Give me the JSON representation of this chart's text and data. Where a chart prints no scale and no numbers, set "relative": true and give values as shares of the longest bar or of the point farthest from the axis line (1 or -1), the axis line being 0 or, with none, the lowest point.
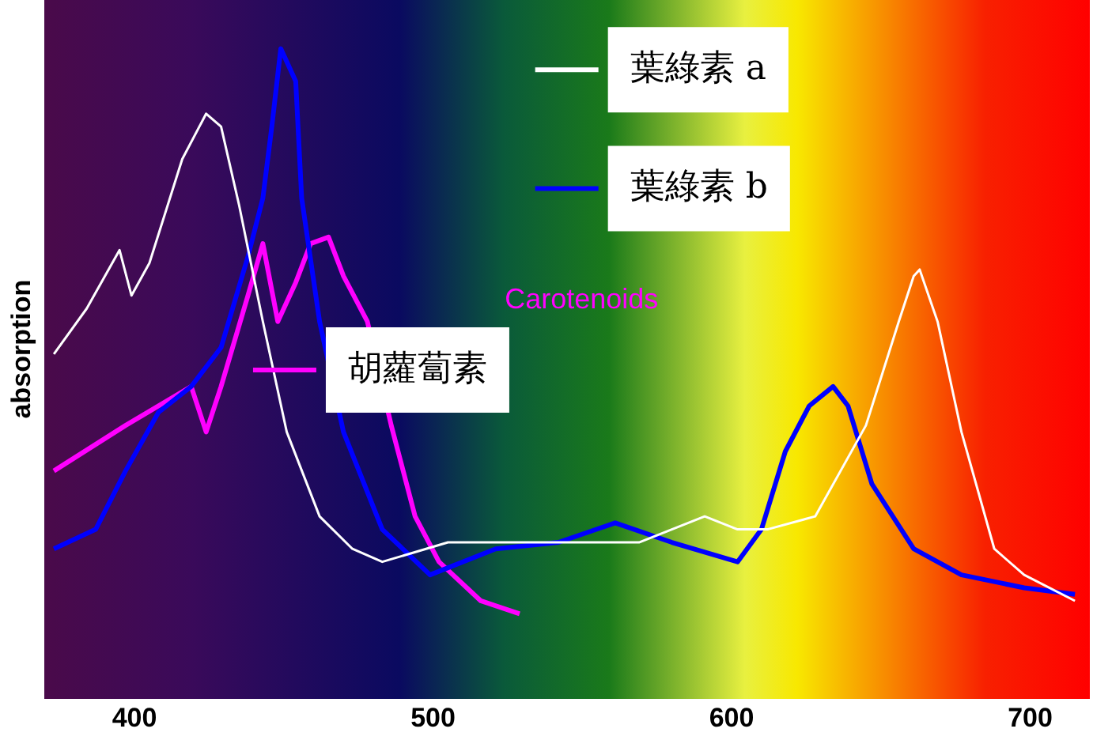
{
  "chart_data": {
    "type": "line",
    "relative": true,
    "ylabel": "absorption",
    "xlim": [
      370,
      720
    ],
    "xticks": [
      400,
      500,
      600,
      700
    ],
    "grid": false,
    "legend": "top",
    "marker": "none",
    "line_style": "solid",
    "annotations": [
      "Carotenoids"
    ],
    "series": [
      {
        "name": "葉綠素 a",
        "color": "#ffffff",
        "x": [
          373,
          384,
          395,
          399,
          405,
          416,
          424,
          429,
          435,
          443,
          451,
          462,
          473,
          483,
          505,
          526,
          548,
          569,
          591,
          602,
          612,
          628,
          645,
          656,
          661,
          663,
          669,
          677,
          688,
          698,
          715
        ],
        "values": [
          0.53,
          0.6,
          0.69,
          0.62,
          0.67,
          0.83,
          0.9,
          0.88,
          0.76,
          0.58,
          0.41,
          0.28,
          0.23,
          0.21,
          0.24,
          0.24,
          0.24,
          0.24,
          0.28,
          0.26,
          0.26,
          0.28,
          0.42,
          0.58,
          0.65,
          0.66,
          0.58,
          0.41,
          0.23,
          0.19,
          0.15
        ]
      },
      {
        "name": "葉綠素 b",
        "color": "#0000ff",
        "x": [
          373,
          387,
          397,
          408,
          419,
          429,
          438,
          443,
          446,
          449,
          454,
          456,
          462,
          470,
          483,
          499,
          521,
          542,
          561,
          580,
          602,
          610,
          618,
          626,
          634,
          639,
          647,
          661,
          677,
          698,
          715
        ],
        "values": [
          0.23,
          0.26,
          0.35,
          0.44,
          0.48,
          0.54,
          0.68,
          0.77,
          0.88,
          1,
          0.95,
          0.77,
          0.58,
          0.41,
          0.26,
          0.19,
          0.23,
          0.24,
          0.27,
          0.24,
          0.21,
          0.26,
          0.38,
          0.45,
          0.48,
          0.45,
          0.33,
          0.23,
          0.19,
          0.17,
          0.16
        ]
      },
      {
        "name": "胡蘿蔔素",
        "color": "#ff00ff",
        "x": [
          373,
          397,
          419,
          424,
          429,
          438,
          443,
          448,
          454,
          459,
          465,
          470,
          478,
          486,
          494,
          502,
          516,
          529
        ],
        "values": [
          0.35,
          0.42,
          0.48,
          0.41,
          0.48,
          0.62,
          0.7,
          0.58,
          0.64,
          0.7,
          0.71,
          0.65,
          0.58,
          0.42,
          0.28,
          0.21,
          0.15,
          0.13
        ]
      }
    ]
  }
}
